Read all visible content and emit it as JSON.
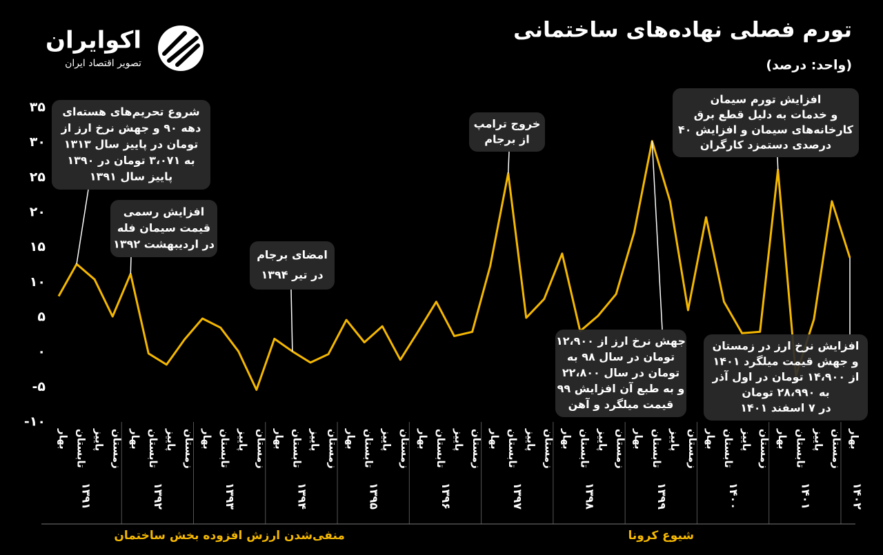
{
  "header": {
    "logo_title": "اکوایران",
    "logo_subtitle": "تصویر اقتصاد ایران"
  },
  "chart_data": {
    "type": "line",
    "title": "تورم فصلی نهاده‌های ساختمانی",
    "subtitle": "(واحد: درصد)",
    "categories": [
      "بهار",
      "تابستان",
      "پاییز",
      "زمستان",
      "بهار",
      "تابستان",
      "پاییز",
      "زمستان",
      "بهار",
      "تابستان",
      "پاییز",
      "زمستان",
      "بهار",
      "تابستان",
      "پاییز",
      "زمستان",
      "بهار",
      "تابستان",
      "پاییز",
      "زمستان",
      "بهار",
      "تابستان",
      "پاییز",
      "زمستان",
      "بهار",
      "تابستان",
      "پاییز",
      "زمستان",
      "بهار",
      "تابستان",
      "پاییز",
      "زمستان",
      "بهار",
      "تابستان",
      "پاییز",
      "زمستان",
      "بهار",
      "تابستان",
      "پاییز",
      "زمستان",
      "بهار",
      "تابستان",
      "پاییز",
      "زمستان",
      "بهار"
    ],
    "years": [
      "۱۳۹۱",
      "۱۳۹۲",
      "۱۳۹۳",
      "۱۳۹۴",
      "۱۳۹۵",
      "۱۳۹۶",
      "۱۳۹۷",
      "۱۳۹۸",
      "۱۳۹۹",
      "۱۴۰۰",
      "۱۴۰۱",
      "۱۴۰۲"
    ],
    "values": [
      8.0,
      12.6,
      10.4,
      5.1,
      11.2,
      -0.2,
      -1.8,
      1.8,
      4.8,
      3.5,
      0.1,
      -5.4,
      1.9,
      0.1,
      -1.5,
      -0.3,
      4.6,
      1.4,
      3.7,
      -1.1,
      3.0,
      7.2,
      2.3,
      2.9,
      12.3,
      25.6,
      4.9,
      7.6,
      14.1,
      3.0,
      5.2,
      8.3,
      17.1,
      30.2,
      21.6,
      6.0,
      19.3,
      7.2,
      2.7,
      2.9,
      26.1,
      -3.4,
      4.7,
      21.6,
      13.5
    ],
    "color": "#f5b800",
    "ylim": [
      -10,
      35
    ],
    "yticks": [
      {
        "value": -10,
        "label": "-۱۰"
      },
      {
        "value": -5,
        "label": "-۵"
      },
      {
        "value": 0,
        "label": "۰"
      },
      {
        "value": 5,
        "label": "۵"
      },
      {
        "value": 10,
        "label": "۱۰"
      },
      {
        "value": 15,
        "label": "۱۵"
      },
      {
        "value": 20,
        "label": "۲۰"
      },
      {
        "value": 25,
        "label": "۲۵"
      },
      {
        "value": 30,
        "label": "۳۰"
      },
      {
        "value": 35,
        "label": "۳۵"
      }
    ],
    "annotations": [
      [
        "شروع تحریم‌های هسته‌ای",
        "دهه ۹۰ و جهش نرخ ارز از",
        "۱۳۱۳ تومان در پاییز سال",
        "۱۳۹۰ به ۳،۰۷۱ تومان در",
        "پاییز سال ۱۳۹۱"
      ],
      [
        "افزایش رسمی",
        "قیمت سیمان فله",
        "در اردیبهشت ۱۳۹۲"
      ],
      [
        "امضای برجام",
        "در تیر ۱۳۹۴"
      ],
      [
        "خروج ترامپ",
        "از برجام"
      ],
      [
        "افزایش تورم سیمان",
        "و خدمات به دلیل قطع برق",
        "کارخانه‌های سیمان و افزایش ۴۰",
        "درصدی دستمزد کارگران"
      ],
      [
        "جهش نرخ ارز از ۱۲،۹۰۰",
        "تومان در سال ۹۸ به",
        "۲۲،۸۰۰ تومان در سال",
        "۹۹ و به طبع آن افزایش",
        "قیمت میلگرد و آهن"
      ],
      [
        "افزایش نرخ ارز در زمستان",
        "۱۴۰۱ و جهش قیمت میلگرد",
        "از ۱۴،۹۰۰ تومان در اول آذر",
        "به ۲۸،۹۹۰ تومان",
        "در ۷ اسفند ۱۴۰۱"
      ]
    ],
    "periods": [
      "منفی‌شدن ارزش افزوده بخش ساختمان",
      "شیوع کرونا"
    ]
  }
}
